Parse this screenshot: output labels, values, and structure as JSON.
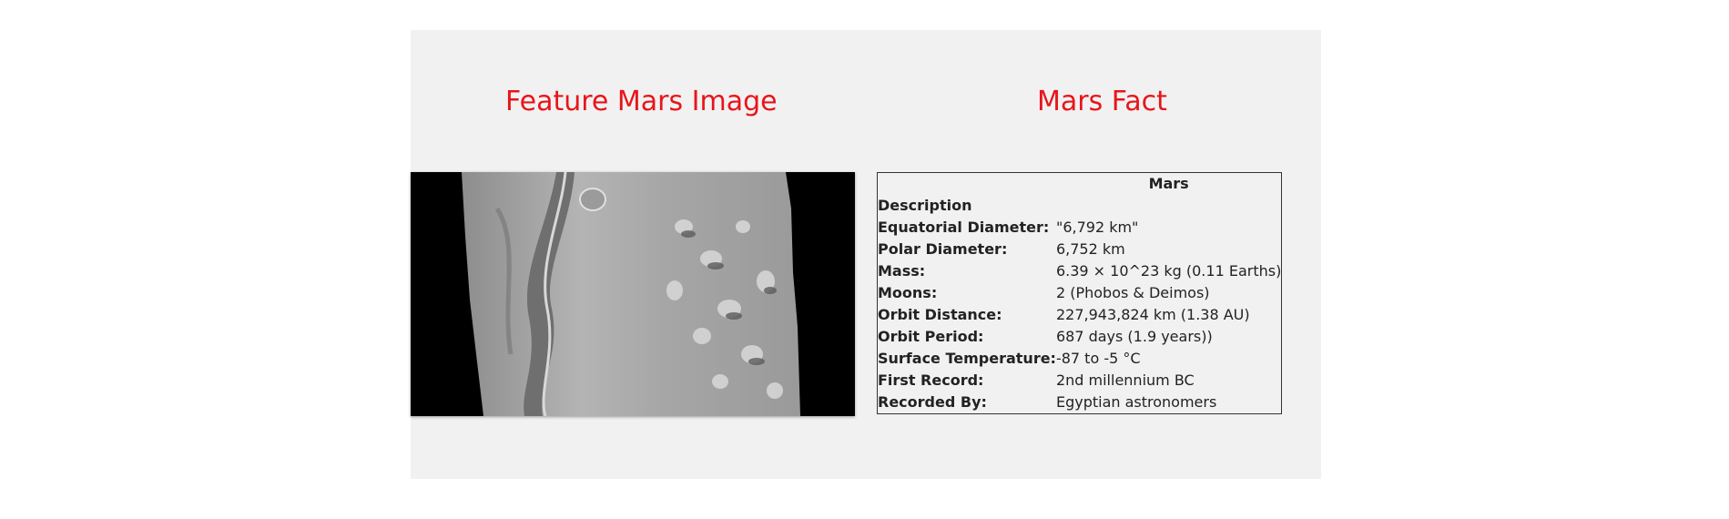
{
  "headings": {
    "image_title": "Feature Mars Image",
    "facts_title": "Mars Fact"
  },
  "facts_table": {
    "column_header": "Mars",
    "rows": [
      {
        "label": "Description",
        "value": ""
      },
      {
        "label": "Equatorial Diameter:",
        "value": "\"6,792 km\""
      },
      {
        "label": "Polar Diameter:",
        "value": "6,752 km"
      },
      {
        "label": "Mass:",
        "value": "6.39 × 10^23 kg (0.11 Earths)"
      },
      {
        "label": "Moons:",
        "value": "2 (Phobos & Deimos)"
      },
      {
        "label": "Orbit Distance:",
        "value": "227,943,824 km (1.38 AU)"
      },
      {
        "label": "Orbit Period:",
        "value": "687 days (1.9 years))"
      },
      {
        "label": "Surface Temperature:",
        "value": "-87 to -5 °C"
      },
      {
        "label": "First Record:",
        "value": "2nd millennium BC"
      },
      {
        "label": "Recorded By:",
        "value": "Egyptian astronomers"
      }
    ]
  },
  "colors": {
    "heading": "#e8151b",
    "panel_bg": "#f1f1f1"
  }
}
